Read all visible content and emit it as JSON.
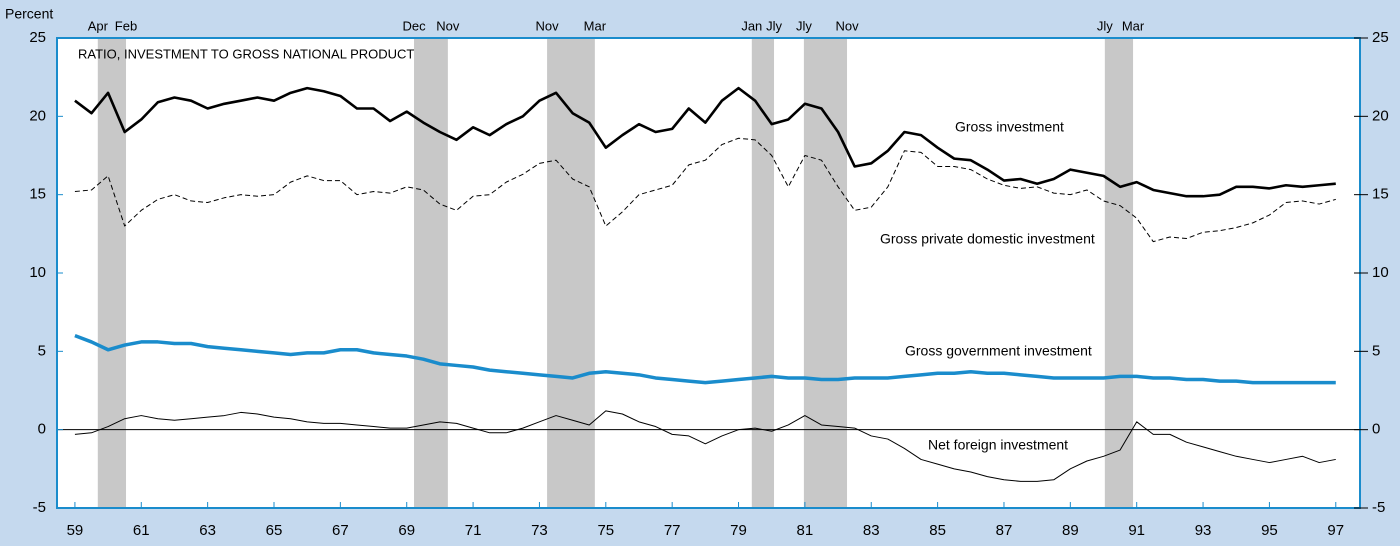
{
  "chart_data": {
    "type": "line",
    "title": "RATIO, INVESTMENT TO GROSS NATIONAL PRODUCT",
    "y_axis_label": "Percent",
    "xlim": [
      1958.46,
      1997.73
    ],
    "ylim": [
      -5,
      25
    ],
    "yticks": [
      -5,
      0,
      5,
      10,
      15,
      20,
      25
    ],
    "xticks": [
      {
        "value": 1959,
        "label": "59"
      },
      {
        "value": 1961,
        "label": "61"
      },
      {
        "value": 1963,
        "label": "63"
      },
      {
        "value": 1965,
        "label": "65"
      },
      {
        "value": 1967,
        "label": "67"
      },
      {
        "value": 1969,
        "label": "69"
      },
      {
        "value": 1971,
        "label": "71"
      },
      {
        "value": 1973,
        "label": "73"
      },
      {
        "value": 1975,
        "label": "75"
      },
      {
        "value": 1977,
        "label": "77"
      },
      {
        "value": 1979,
        "label": "79"
      },
      {
        "value": 1981,
        "label": "81"
      },
      {
        "value": 1983,
        "label": "83"
      },
      {
        "value": 1985,
        "label": "85"
      },
      {
        "value": 1987,
        "label": "87"
      },
      {
        "value": 1989,
        "label": "89"
      },
      {
        "value": 1991,
        "label": "91"
      },
      {
        "value": 1993,
        "label": "93"
      },
      {
        "value": 1995,
        "label": "95"
      },
      {
        "value": 1997,
        "label": "97"
      }
    ],
    "zero_line": true,
    "recessions": [
      {
        "start": 1959.69,
        "end": 1960.54,
        "start_label": "Apr",
        "end_label": "Feb"
      },
      {
        "start": 1969.22,
        "end": 1970.24,
        "start_label": "Dec",
        "end_label": "Nov"
      },
      {
        "start": 1973.23,
        "end": 1974.67,
        "start_label": "Nov",
        "end_label": "Mar"
      },
      {
        "start": 1979.4,
        "end": 1980.07,
        "start_label": "Jan",
        "end_label": "Jly"
      },
      {
        "start": 1980.97,
        "end": 1982.27,
        "start_label": "Jly",
        "end_label": "Nov"
      },
      {
        "start": 1990.04,
        "end": 1990.89,
        "start_label": "Jly",
        "end_label": "Mar"
      }
    ],
    "recession_color": "#c8c8c8",
    "x": [
      1959,
      1959.5,
      1960,
      1960.5,
      1961,
      1961.5,
      1962,
      1962.5,
      1963,
      1963.5,
      1964,
      1964.5,
      1965,
      1965.5,
      1966,
      1966.5,
      1967,
      1967.5,
      1968,
      1968.5,
      1969,
      1969.5,
      1970,
      1970.5,
      1971,
      1971.5,
      1972,
      1972.5,
      1973,
      1973.5,
      1974,
      1974.5,
      1975,
      1975.5,
      1976,
      1976.5,
      1977,
      1977.5,
      1978,
      1978.5,
      1979,
      1979.5,
      1980,
      1980.5,
      1981,
      1981.5,
      1982,
      1982.5,
      1983,
      1983.5,
      1984,
      1984.5,
      1985,
      1985.5,
      1986,
      1986.5,
      1987,
      1987.5,
      1988,
      1988.5,
      1989,
      1989.5,
      1990,
      1990.5,
      1991,
      1991.5,
      1992,
      1992.5,
      1993,
      1993.5,
      1994,
      1994.5,
      1995,
      1995.5,
      1996,
      1996.5,
      1997
    ],
    "series": [
      {
        "name": "Gross investment",
        "color": "#000000",
        "line_style": "solid",
        "values": [
          21.0,
          20.2,
          21.5,
          19.0,
          19.8,
          20.9,
          21.2,
          21.0,
          20.5,
          20.8,
          21.0,
          21.2,
          21.0,
          21.5,
          21.8,
          21.6,
          21.3,
          20.5,
          20.5,
          19.7,
          20.3,
          19.6,
          19.0,
          18.5,
          19.3,
          18.8,
          19.5,
          20.0,
          21.0,
          21.5,
          20.2,
          19.6,
          18.0,
          18.8,
          19.5,
          19.0,
          19.2,
          20.5,
          19.6,
          21.0,
          21.8,
          21.0,
          19.5,
          19.8,
          20.8,
          20.5,
          19.0,
          16.8,
          17.0,
          17.8,
          19.0,
          18.8,
          18.0,
          17.3,
          17.2,
          16.6,
          15.9,
          16.0,
          15.7,
          16.0,
          16.6,
          16.4,
          16.2,
          15.5,
          15.8,
          15.3,
          15.1,
          14.9,
          14.9,
          15.0,
          15.5,
          15.5,
          15.4,
          15.6,
          15.5,
          15.6,
          15.7
        ]
      },
      {
        "name": "Gross private domestic investment",
        "color": "#000000",
        "line_style": "dashed",
        "values": [
          15.2,
          15.3,
          16.2,
          13.0,
          14.0,
          14.7,
          15.0,
          14.6,
          14.5,
          14.8,
          15.0,
          14.9,
          15.0,
          15.8,
          16.2,
          15.9,
          15.9,
          15.0,
          15.2,
          15.1,
          15.5,
          15.3,
          14.4,
          14.0,
          14.9,
          15.0,
          15.8,
          16.3,
          17.0,
          17.2,
          16.0,
          15.5,
          13.0,
          13.9,
          15.0,
          15.3,
          15.6,
          16.9,
          17.2,
          18.2,
          18.6,
          18.5,
          17.5,
          15.5,
          17.5,
          17.2,
          15.5,
          14.0,
          14.2,
          15.5,
          17.8,
          17.7,
          16.8,
          16.8,
          16.6,
          16.0,
          15.6,
          15.4,
          15.5,
          15.1,
          15.0,
          15.3,
          14.6,
          14.3,
          13.5,
          12.0,
          12.3,
          12.2,
          12.6,
          12.7,
          12.9,
          13.2,
          13.7,
          14.5,
          14.6,
          14.4,
          14.7
        ]
      },
      {
        "name": "Gross government investment",
        "color": "#1a8ccc",
        "line_style": "solid",
        "values": [
          6.0,
          5.6,
          5.1,
          5.4,
          5.6,
          5.6,
          5.5,
          5.5,
          5.3,
          5.2,
          5.1,
          5.0,
          4.9,
          4.8,
          4.9,
          4.9,
          5.1,
          5.1,
          4.9,
          4.8,
          4.7,
          4.5,
          4.2,
          4.1,
          4.0,
          3.8,
          3.7,
          3.6,
          3.5,
          3.4,
          3.3,
          3.6,
          3.7,
          3.6,
          3.5,
          3.3,
          3.2,
          3.1,
          3.0,
          3.1,
          3.2,
          3.3,
          3.4,
          3.3,
          3.3,
          3.2,
          3.2,
          3.3,
          3.3,
          3.3,
          3.4,
          3.5,
          3.6,
          3.6,
          3.7,
          3.6,
          3.6,
          3.5,
          3.4,
          3.3,
          3.3,
          3.3,
          3.3,
          3.4,
          3.4,
          3.3,
          3.3,
          3.2,
          3.2,
          3.1,
          3.1,
          3.0,
          3.0,
          3.0,
          3.0,
          3.0,
          3.0
        ]
      },
      {
        "name": "Net foreign investment",
        "color": "#000000",
        "line_style": "solid",
        "values": [
          -0.3,
          -0.2,
          0.2,
          0.7,
          0.9,
          0.7,
          0.6,
          0.7,
          0.8,
          0.9,
          1.1,
          1.0,
          0.8,
          0.7,
          0.5,
          0.4,
          0.4,
          0.3,
          0.2,
          0.1,
          0.1,
          0.3,
          0.5,
          0.4,
          0.1,
          -0.2,
          -0.2,
          0.1,
          0.5,
          0.9,
          0.6,
          0.3,
          1.2,
          1.0,
          0.5,
          0.2,
          -0.3,
          -0.4,
          -0.9,
          -0.4,
          0.0,
          0.1,
          -0.1,
          0.3,
          0.9,
          0.3,
          0.2,
          0.1,
          -0.4,
          -0.6,
          -1.2,
          -1.9,
          -2.2,
          -2.5,
          -2.7,
          -3.0,
          -3.2,
          -3.3,
          -3.3,
          -3.2,
          -2.5,
          -2.0,
          -1.7,
          -1.3,
          0.5,
          -0.3,
          -0.3,
          -0.8,
          -1.1,
          -1.4,
          -1.7,
          -1.9,
          -2.1,
          -1.9,
          -1.7,
          -2.1,
          -1.9
        ]
      }
    ]
  }
}
